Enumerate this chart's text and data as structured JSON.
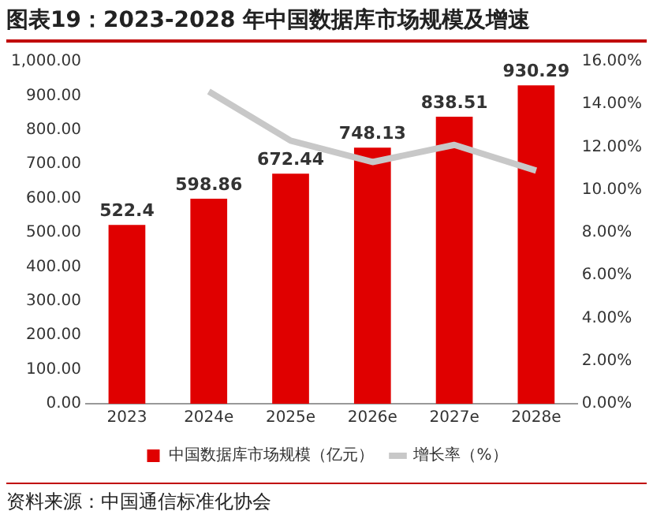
{
  "chart_data": {
    "type": "bar",
    "title": "图表19：2023-2028 年中国数据库市场规模及增速",
    "categories": [
      "2023",
      "2024e",
      "2025e",
      "2026e",
      "2027e",
      "2028e"
    ],
    "series": [
      {
        "name": "中国数据库市场规模（亿元）",
        "color": "#e00000",
        "values": [
          522.4,
          598.86,
          672.44,
          748.13,
          838.51,
          930.29
        ],
        "value_labels": [
          "522.4",
          "598.86",
          "672.44",
          "748.13",
          "838.51",
          "930.29"
        ]
      },
      {
        "name": "增长率（%）",
        "type": "line",
        "axis": "y2",
        "color": "#c8c8c8",
        "values": [
          null,
          14.6,
          12.3,
          11.3,
          12.1,
          10.9
        ]
      }
    ],
    "ylim": [
      0,
      1000
    ],
    "yticks": [
      {
        "value": 0,
        "label": "0.00"
      },
      {
        "value": 100,
        "label": "100.00"
      },
      {
        "value": 200,
        "label": "200.00"
      },
      {
        "value": 300,
        "label": "300.00"
      },
      {
        "value": 400,
        "label": "400.00"
      },
      {
        "value": 500,
        "label": "500.00"
      },
      {
        "value": 600,
        "label": "600.00"
      },
      {
        "value": 700,
        "label": "700.00"
      },
      {
        "value": 800,
        "label": "800.00"
      },
      {
        "value": 900,
        "label": "900.00"
      },
      {
        "value": 1000,
        "label": "1,000.00"
      }
    ],
    "y2lim": [
      0,
      16
    ],
    "y2ticks": [
      {
        "value": 0,
        "label": "0.00%"
      },
      {
        "value": 2,
        "label": "2.00%"
      },
      {
        "value": 4,
        "label": "4.00%"
      },
      {
        "value": 6,
        "label": "6.00%"
      },
      {
        "value": 8,
        "label": "8.00%"
      },
      {
        "value": 10,
        "label": "10.00%"
      },
      {
        "value": 12,
        "label": "12.00%"
      },
      {
        "value": 14,
        "label": "14.00%"
      },
      {
        "value": 16,
        "label": "16.00%"
      }
    ],
    "grid": false,
    "legend": "bottom",
    "marker": "none",
    "annotations": [
      "资料来源：中国通信标准化协会"
    ]
  }
}
